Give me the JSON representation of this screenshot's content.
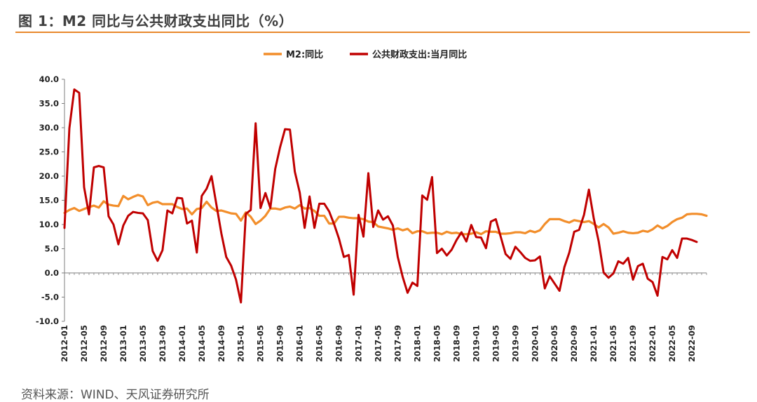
{
  "figure": {
    "title": "图 1：M2 同比与公共财政支出同比（%）",
    "source": "资料来源：WIND、天风证券研究所"
  },
  "colors": {
    "m2": "#f28e2b",
    "fiscal": "#c00000",
    "rule": "#e8892d",
    "axis": "#7f7f7f"
  },
  "chart_data": {
    "type": "line",
    "title": "",
    "xlabel": "",
    "ylabel": "",
    "ylim": [
      -10,
      40
    ],
    "yticks": [
      "40.0",
      "35.0",
      "30.0",
      "25.0",
      "20.0",
      "15.0",
      "10.0",
      "5.0",
      "0.0",
      "-5.0",
      "-10.0"
    ],
    "legend_position": "top-center",
    "x_tick_labels": [
      "2012-01",
      "2012-05",
      "2012-09",
      "2013-01",
      "2013-05",
      "2013-09",
      "2014-01",
      "2014-05",
      "2014-09",
      "2015-01",
      "2015-05",
      "2015-09",
      "2016-01",
      "2016-05",
      "2016-09",
      "2017-01",
      "2017-05",
      "2017-09",
      "2018-01",
      "2018-05",
      "2018-09",
      "2019-01",
      "2019-05",
      "2019-09",
      "2020-01",
      "2020-05",
      "2020-09",
      "2021-01",
      "2021-05",
      "2021-09",
      "2022-01",
      "2022-05",
      "2022-09"
    ],
    "x_start": "2012-01",
    "x_end": "2022-10",
    "series": [
      {
        "name": "M2:同比",
        "color": "#f28e2b",
        "values": [
          12.4,
          13.0,
          13.4,
          12.8,
          13.2,
          13.6,
          13.9,
          13.5,
          14.8,
          14.1,
          13.9,
          13.8,
          15.9,
          15.2,
          15.7,
          16.1,
          15.8,
          14.0,
          14.5,
          14.7,
          14.2,
          14.2,
          14.2,
          13.6,
          13.2,
          13.3,
          12.1,
          13.2,
          13.4,
          14.7,
          13.5,
          12.8,
          12.9,
          12.6,
          12.3,
          12.2,
          10.8,
          12.5,
          11.6,
          10.1,
          10.8,
          11.8,
          13.3,
          13.3,
          13.1,
          13.5,
          13.7,
          13.3,
          14.0,
          13.3,
          13.4,
          12.8,
          11.8,
          11.8,
          10.2,
          10.2,
          11.6,
          11.6,
          11.4,
          11.3,
          11.3,
          11.1,
          10.6,
          10.5,
          9.6,
          9.4,
          9.2,
          8.9,
          9.2,
          8.8,
          9.1,
          8.2,
          8.6,
          8.6,
          8.2,
          8.3,
          8.3,
          8.0,
          8.5,
          8.2,
          8.3,
          8.0,
          8.0,
          8.1,
          8.4,
          8.0,
          8.6,
          8.5,
          8.5,
          8.1,
          8.1,
          8.2,
          8.4,
          8.4,
          8.2,
          8.7,
          8.4,
          8.8,
          10.1,
          11.1,
          11.1,
          11.1,
          10.7,
          10.4,
          10.9,
          10.7,
          10.5,
          10.7,
          10.1,
          9.4,
          10.1,
          9.4,
          8.1,
          8.3,
          8.6,
          8.3,
          8.2,
          8.3,
          8.7,
          8.5,
          9.0,
          9.8,
          9.2,
          9.7,
          10.5,
          11.1,
          11.4,
          12.1,
          12.2,
          12.2,
          12.1,
          11.8
        ]
      },
      {
        "name": "公共财政支出:当月同比",
        "color": "#c00000",
        "values": [
          9.3,
          29.9,
          37.9,
          37.2,
          17.7,
          12.1,
          21.8,
          22.1,
          21.8,
          11.7,
          10.0,
          5.9,
          9.8,
          11.8,
          12.6,
          12.4,
          12.3,
          10.9,
          4.5,
          2.5,
          4.7,
          12.9,
          12.3,
          15.5,
          15.4,
          10.2,
          10.8,
          4.2,
          15.9,
          17.4,
          20.0,
          14.1,
          8.2,
          3.3,
          1.5,
          -1.4,
          -6.1,
          12.2,
          13.0,
          30.9,
          13.4,
          16.5,
          13.4,
          21.5,
          26.0,
          29.7,
          29.6,
          20.9,
          16.6,
          9.3,
          15.8,
          9.3,
          14.3,
          14.3,
          12.7,
          10.1,
          7.1,
          3.3,
          3.7,
          -4.5,
          12.0,
          7.5,
          20.6,
          9.5,
          12.9,
          11.0,
          11.7,
          9.8,
          3.3,
          -0.8,
          -4.1,
          -2.0,
          -2.7,
          16.0,
          15.1,
          19.8,
          4.1,
          5.0,
          3.6,
          4.8,
          6.8,
          8.4,
          6.5,
          9.9,
          7.4,
          7.3,
          5.1,
          10.6,
          11.1,
          7.5,
          3.9,
          2.9,
          5.4,
          4.3,
          3.1,
          2.5,
          2.6,
          3.4,
          -3.2,
          -0.7,
          -2.2,
          -3.7,
          1.2,
          4.2,
          8.5,
          8.9,
          12.0,
          17.2,
          11.2,
          6.5,
          0.1,
          -1.0,
          -0.1,
          2.4,
          1.9,
          3.1,
          -1.4,
          1.4,
          1.9,
          -1.2,
          -1.9,
          -4.7,
          3.3,
          2.8,
          4.7,
          3.1,
          7.1,
          7.1,
          6.8,
          6.4
        ]
      }
    ]
  }
}
